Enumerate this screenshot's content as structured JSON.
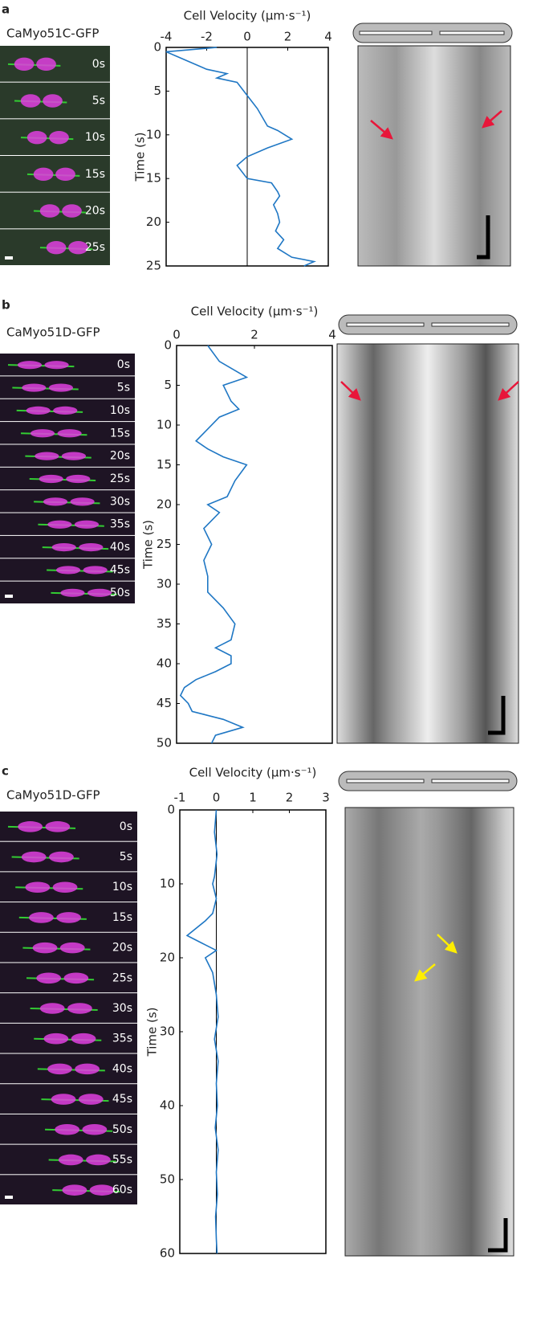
{
  "panels": [
    {
      "letter": "a",
      "protein": "CaMyo51C-GFP",
      "frames": [
        "0s",
        "5s",
        "10s",
        "15s",
        "20s",
        "25s"
      ]
    },
    {
      "letter": "b",
      "protein": "CaMyo51D-GFP",
      "frames": [
        "0s",
        "5s",
        "10s",
        "15s",
        "20s",
        "25s",
        "30s",
        "35s",
        "40s",
        "45s",
        "50s"
      ]
    },
    {
      "letter": "c",
      "protein": "CaMyo51D-GFP",
      "frames": [
        "0s",
        "5s",
        "10s",
        "15s",
        "20s",
        "25s",
        "30s",
        "35s",
        "40s",
        "45s",
        "50s",
        "55s",
        "60s"
      ]
    }
  ],
  "chart_data": [
    {
      "type": "line",
      "xlabel": "Cell Velocity (μm·s⁻¹)",
      "ylabel": "Time (s)",
      "xlim": [
        -4,
        4
      ],
      "xticks": [
        -4,
        -2,
        0,
        2,
        4
      ],
      "ylim": [
        0,
        25
      ],
      "yticks": [
        0,
        5,
        10,
        15,
        20,
        25
      ],
      "vline": 0,
      "y": [
        0,
        0.5,
        1,
        2.5,
        3,
        3.5,
        4,
        5.5,
        7,
        9,
        9.5,
        10.5,
        11.5,
        12.5,
        13.5,
        15,
        15.5,
        16.5,
        17,
        18,
        19,
        20,
        21,
        22,
        23,
        24,
        24.5,
        25
      ],
      "series": [
        {
          "color": "#1f77c4",
          "values": [
            -1.5,
            -4,
            -3.5,
            -2,
            -1,
            -1.5,
            -0.5,
            0,
            0.5,
            1,
            1.5,
            2.2,
            1,
            0,
            -0.5,
            0,
            1.2,
            1.5,
            1.6,
            1.3,
            1.5,
            1.6,
            1.4,
            1.8,
            1.5,
            2.2,
            3.3,
            2.8
          ]
        }
      ]
    },
    {
      "type": "line",
      "xlabel": "Cell Velocity (μm·s⁻¹)",
      "ylabel": "Time (s)",
      "xlim": [
        0,
        4
      ],
      "xticks": [
        0,
        2,
        4
      ],
      "ylim": [
        0,
        50
      ],
      "yticks": [
        0,
        5,
        10,
        15,
        20,
        25,
        30,
        35,
        40,
        45,
        50
      ],
      "y": [
        0,
        2,
        4,
        5,
        7,
        8,
        9,
        11,
        12,
        13,
        14,
        15,
        17,
        19,
        20,
        21,
        23,
        25,
        27,
        29,
        31,
        33,
        35,
        37,
        38,
        39,
        40,
        41,
        42,
        43,
        44,
        45,
        46,
        47,
        48,
        49,
        50
      ],
      "series": [
        {
          "color": "#1f77c4",
          "values": [
            0.8,
            1.1,
            1.8,
            1.2,
            1.4,
            1.6,
            1.1,
            0.7,
            0.5,
            0.8,
            1.2,
            1.8,
            1.5,
            1.3,
            0.8,
            1.1,
            0.7,
            0.9,
            0.7,
            0.8,
            0.8,
            1.2,
            1.5,
            1.4,
            1.0,
            1.4,
            1.4,
            1.0,
            0.5,
            0.2,
            0.1,
            0.3,
            0.4,
            1.2,
            1.7,
            1.0,
            0.9
          ]
        }
      ]
    },
    {
      "type": "line",
      "xlabel": "Cell Velocity (μm·s⁻¹)",
      "ylabel": "Time (s)",
      "xlim": [
        -1,
        3
      ],
      "xticks": [
        -1,
        0,
        1,
        2,
        3
      ],
      "ylim": [
        0,
        60
      ],
      "yticks": [
        0,
        10,
        20,
        30,
        40,
        50,
        60
      ],
      "vline": 0,
      "y": [
        0,
        3,
        6,
        9,
        10,
        12,
        14,
        15,
        17,
        18,
        19,
        20,
        22,
        25,
        28,
        31,
        34,
        37,
        40,
        43,
        46,
        49,
        52,
        55,
        58,
        60
      ],
      "series": [
        {
          "color": "#1f77c4",
          "values": [
            0,
            -0.05,
            0.02,
            -0.05,
            -0.1,
            0,
            -0.1,
            -0.3,
            -0.8,
            -0.4,
            0,
            -0.3,
            -0.1,
            0,
            0.05,
            -0.05,
            0.05,
            0,
            0.03,
            -0.03,
            0.05,
            0,
            0.03,
            -0.02,
            0,
            0.02
          ]
        }
      ]
    }
  ]
}
